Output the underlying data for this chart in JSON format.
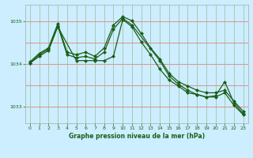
{
  "title": "Graphe pression niveau de la mer (hPa)",
  "bg_color": "#cceeff",
  "line_color": "#1a5e1a",
  "grid_color_h": "#e88080",
  "grid_color_v": "#99bb99",
  "xlim": [
    -0.5,
    23.5
  ],
  "ylim": [
    1032.6,
    1035.4
  ],
  "yticks": [
    1033,
    1034,
    1035
  ],
  "xticks": [
    0,
    1,
    2,
    3,
    4,
    5,
    6,
    7,
    8,
    9,
    10,
    11,
    12,
    13,
    14,
    15,
    16,
    17,
    18,
    19,
    20,
    21,
    22,
    23
  ],
  "line1_x": [
    0,
    1,
    2,
    3,
    4,
    5,
    6,
    7,
    8,
    9,
    10,
    11,
    12,
    13,
    14,
    15,
    16,
    17,
    18,
    19,
    20,
    21,
    22,
    23
  ],
  "line1_y": [
    1034.05,
    1034.25,
    1034.38,
    1034.95,
    1034.28,
    1034.22,
    1034.28,
    1034.18,
    1034.38,
    1034.92,
    1035.12,
    1035.02,
    1034.72,
    1034.38,
    1034.12,
    1033.78,
    1033.58,
    1033.48,
    1033.38,
    1033.32,
    1033.32,
    1033.38,
    1033.12,
    1032.88
  ],
  "line2_x": [
    0,
    1,
    2,
    3,
    4,
    5,
    6,
    7,
    8,
    9,
    10,
    11,
    14,
    15,
    16,
    17,
    18,
    19,
    20,
    21,
    22,
    23
  ],
  "line2_y": [
    1034.02,
    1034.22,
    1034.35,
    1034.9,
    1034.22,
    1034.15,
    1034.18,
    1034.12,
    1034.28,
    1034.82,
    1035.08,
    1034.92,
    1034.08,
    1033.72,
    1033.52,
    1033.38,
    1033.28,
    1033.22,
    1033.25,
    1033.58,
    1033.08,
    1032.82
  ],
  "line3_x": [
    0,
    1,
    2,
    3,
    5,
    6,
    7,
    8,
    9,
    10,
    11,
    12,
    13,
    14,
    15,
    16,
    17,
    18,
    19,
    20,
    21,
    22,
    23
  ],
  "line3_y": [
    1034.02,
    1034.18,
    1034.32,
    1034.88,
    1034.08,
    1034.08,
    1034.08,
    1034.08,
    1034.18,
    1035.05,
    1034.88,
    1034.52,
    1034.22,
    1033.88,
    1033.62,
    1033.48,
    1033.32,
    1033.28,
    1033.22,
    1033.22,
    1033.32,
    1033.02,
    1032.8
  ]
}
